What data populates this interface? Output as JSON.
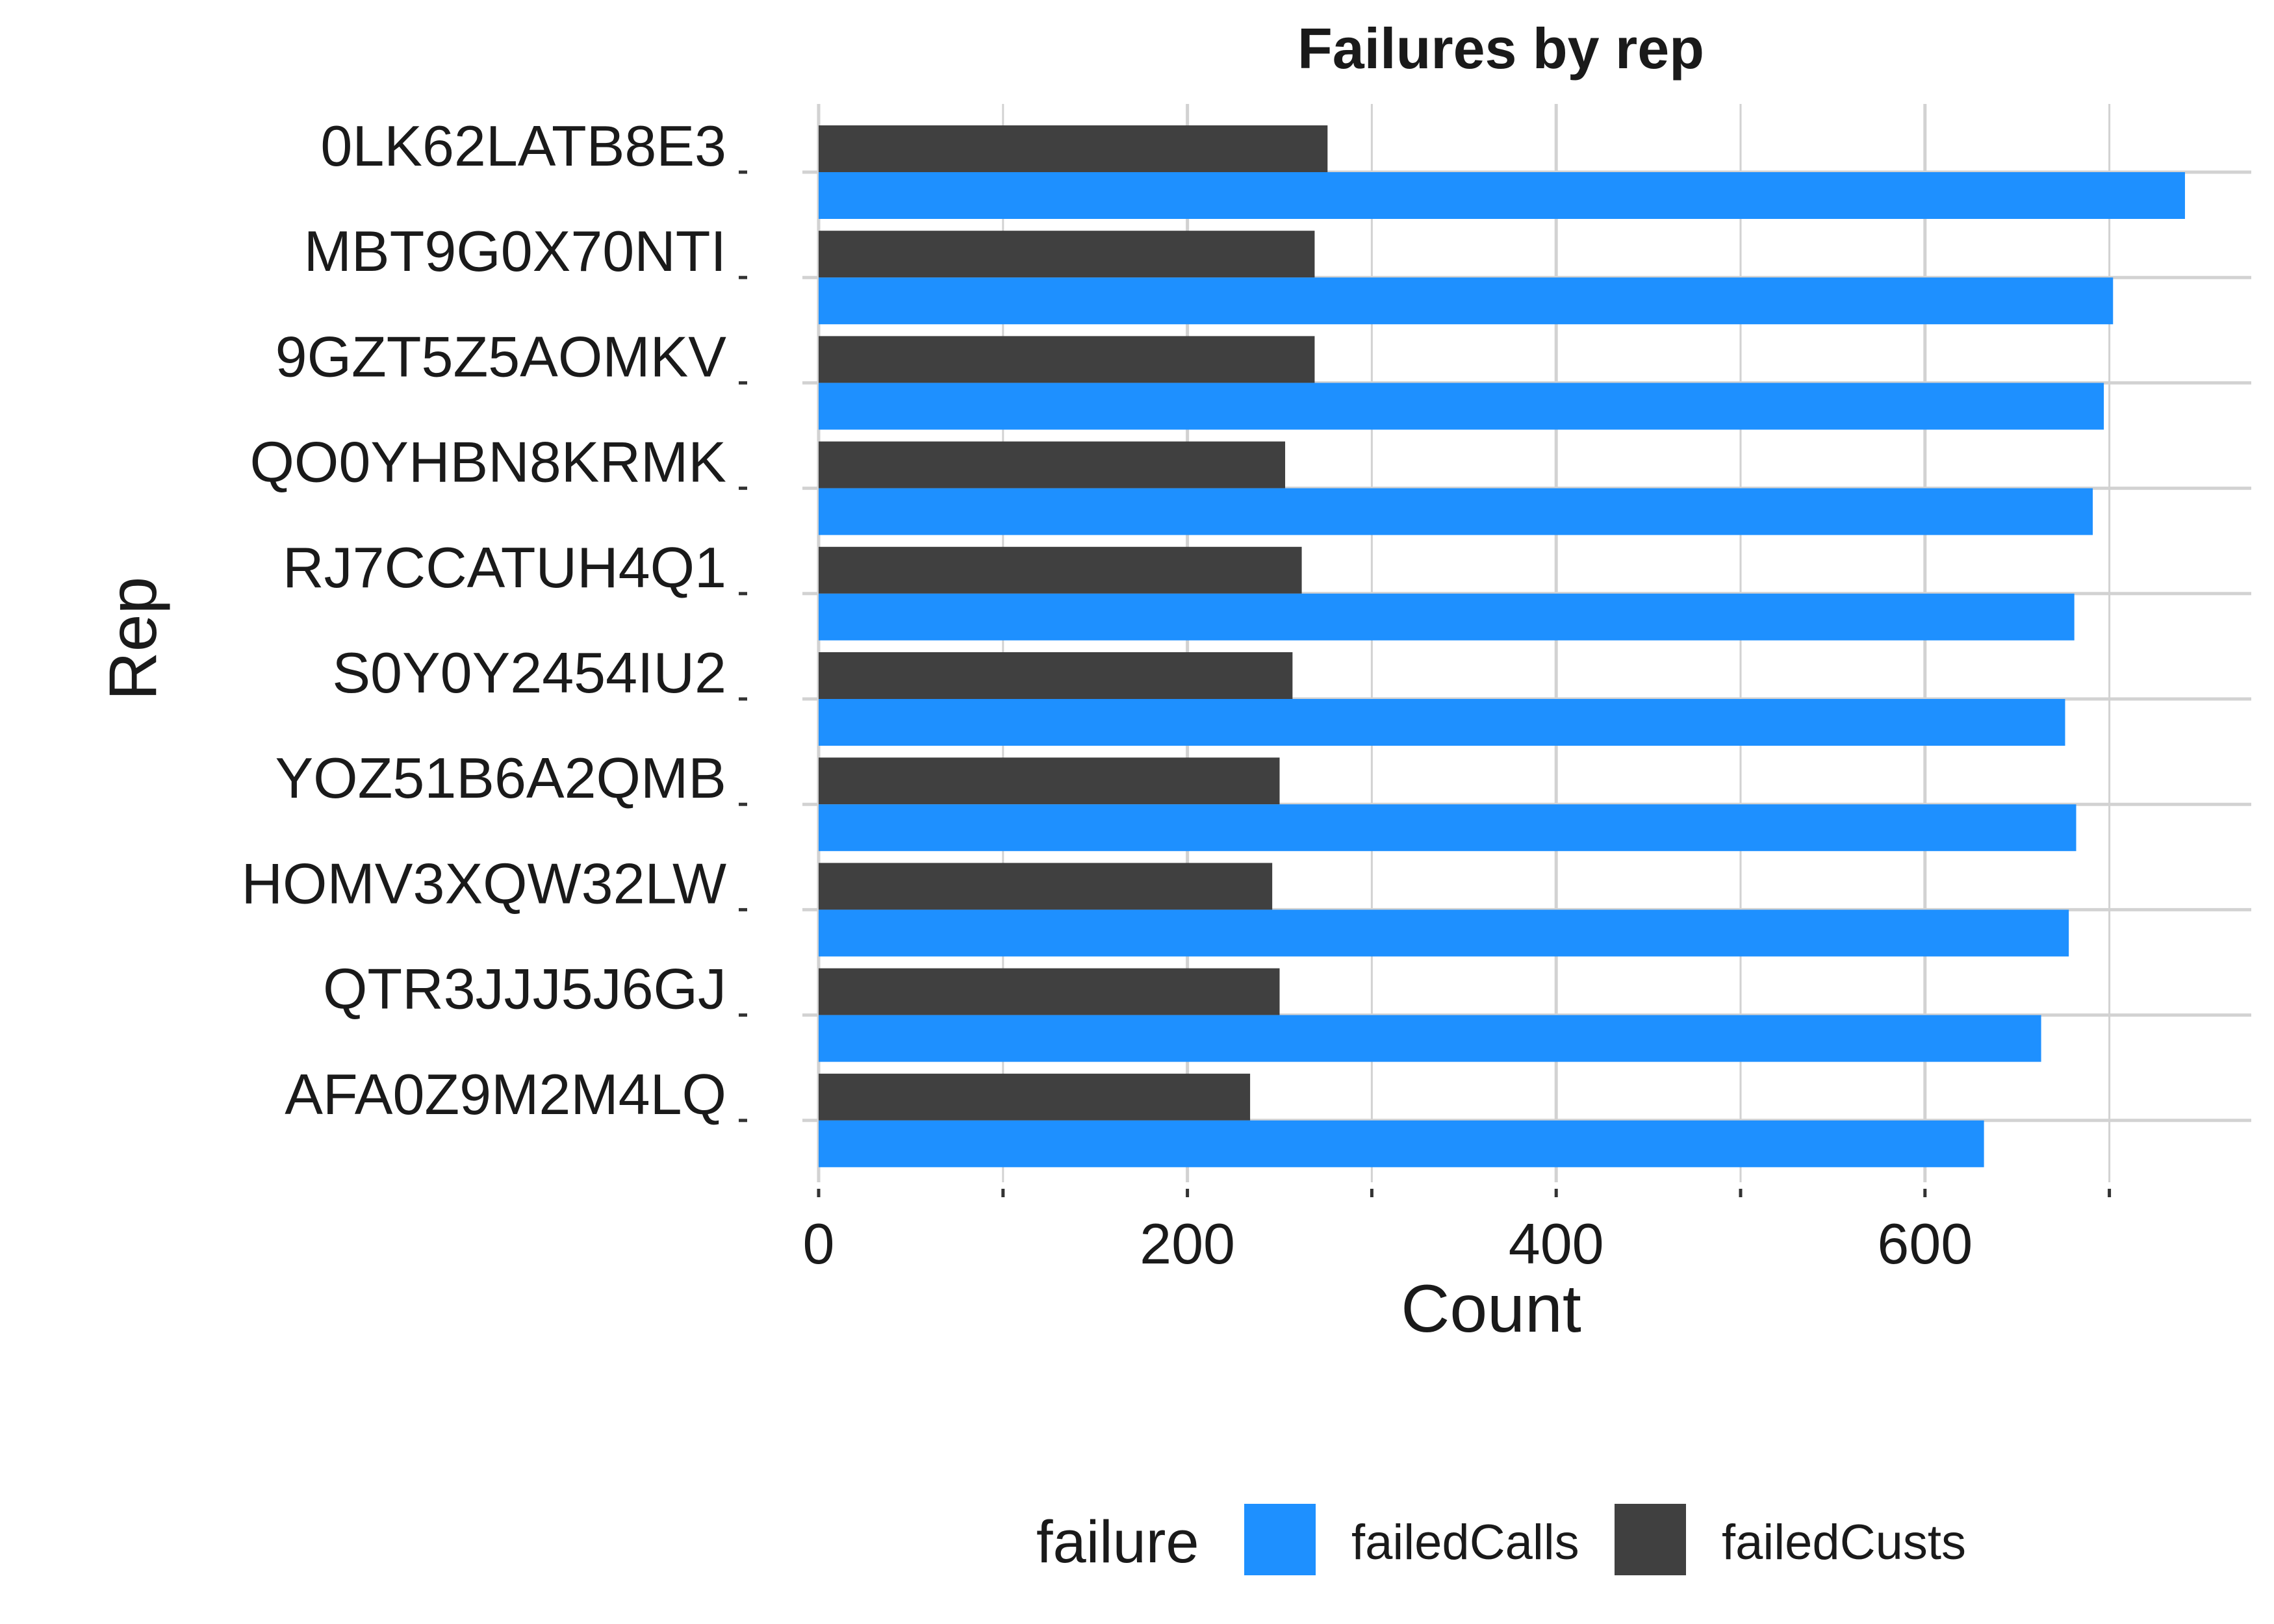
{
  "chart_data": {
    "type": "bar",
    "orientation": "horizontal",
    "title": "Failures by rep",
    "xlabel": "Count",
    "ylabel": "Rep",
    "xlim": [
      0,
      780
    ],
    "x_ticks": [
      0,
      200,
      400,
      600
    ],
    "grid": true,
    "legend_position": "bottom",
    "legend_title": "failure",
    "categories": [
      "0LK62LATB8E3",
      "MBT9G0X70NTI",
      "9GZT5Z5AOMKV",
      "QO0YHBN8KRMK",
      "RJ7CCATUH4Q1",
      "S0Y0Y2454IU2",
      "YOZ51B6A2QMB",
      "HOMV3XQW32LW",
      "QTR3JJJ5J6GJ",
      "AFA0Z9M2M4LQ"
    ],
    "series": [
      {
        "name": "failedCalls",
        "color": "#1e90ff",
        "values": [
          741,
          702,
          697,
          691,
          681,
          676,
          682,
          678,
          663,
          632
        ]
      },
      {
        "name": "failedCusts",
        "color": "#404040",
        "values": [
          276,
          269,
          269,
          253,
          262,
          257,
          250,
          246,
          250,
          234
        ]
      }
    ]
  }
}
